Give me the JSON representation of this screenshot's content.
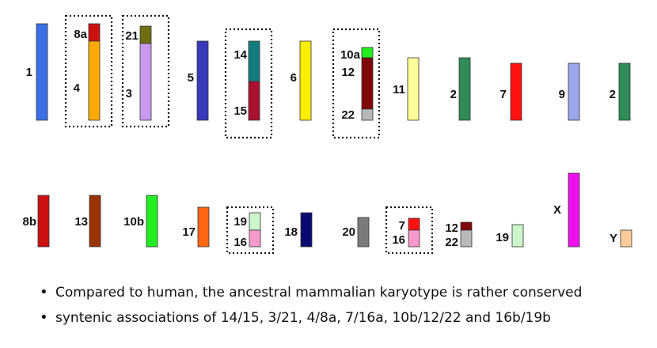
{
  "groups_row1": [
    {
      "label": "1",
      "segments": [
        {
          "color": "#3b6fe6"
        }
      ]
    },
    {
      "grouped": true,
      "labels": [
        "8a",
        "4"
      ],
      "segments": [
        {
          "color": "#cc1111"
        },
        {
          "color": "#ffaa00"
        }
      ]
    },
    {
      "grouped": true,
      "labels": [
        "21",
        "3"
      ],
      "segments": [
        {
          "color": "#6e6e12"
        },
        {
          "color": "#c99af2"
        }
      ]
    },
    {
      "label": "5",
      "segments": [
        {
          "color": "#3838b8"
        }
      ]
    },
    {
      "grouped": true,
      "labels": [
        "14",
        "15"
      ],
      "segments": [
        {
          "color": "#137c7c"
        },
        {
          "color": "#a8102e"
        }
      ]
    },
    {
      "label": "6",
      "segments": [
        {
          "color": "#ffee00"
        }
      ]
    },
    {
      "grouped": true,
      "labels": [
        "10a",
        "12",
        "22"
      ],
      "segments": [
        {
          "color": "#22ee22"
        },
        {
          "color": "#7e0707"
        },
        {
          "color": "#b8b8b8"
        }
      ]
    },
    {
      "label": "11",
      "segments": [
        {
          "color": "#ffff99"
        }
      ]
    },
    {
      "label": "2",
      "segments": [
        {
          "color": "#2f8b57"
        }
      ]
    },
    {
      "label": "7",
      "segments": [
        {
          "color": "#ff1111"
        }
      ]
    },
    {
      "label": "9",
      "segments": [
        {
          "color": "#9aa6ee"
        }
      ]
    },
    {
      "label": "2",
      "segments": [
        {
          "color": "#2f8b57"
        }
      ]
    }
  ],
  "groups_row2": [
    {
      "label": "8b",
      "segments": [
        {
          "color": "#cc1111"
        }
      ]
    },
    {
      "label": "13",
      "segments": [
        {
          "color": "#9a3300"
        }
      ]
    },
    {
      "label": "10b",
      "segments": [
        {
          "color": "#22ee22"
        }
      ]
    },
    {
      "label": "17",
      "segments": [
        {
          "color": "#ff6611"
        }
      ]
    },
    {
      "grouped": true,
      "labels": [
        "19",
        "16"
      ],
      "segments": [
        {
          "color": "#ccf5cc"
        },
        {
          "color": "#f59acb"
        }
      ]
    },
    {
      "label": "18",
      "segments": [
        {
          "color": "#0a0a6e"
        }
      ]
    },
    {
      "label": "20",
      "segments": [
        {
          "color": "#7a7a7a"
        }
      ]
    },
    {
      "grouped": true,
      "labels": [
        "7",
        "16"
      ],
      "segments": [
        {
          "color": "#ff1111"
        },
        {
          "color": "#f59acb"
        }
      ]
    },
    {
      "labels": [
        "12",
        "22"
      ],
      "segments": [
        {
          "color": "#7e0707"
        },
        {
          "color": "#b8b8b8"
        }
      ]
    },
    {
      "label": "19",
      "segments": [
        {
          "color": "#ccf5cc"
        }
      ]
    },
    {
      "label": "X",
      "segments": [
        {
          "color": "#ee11ee"
        }
      ]
    },
    {
      "label": "Y",
      "segments": [
        {
          "color": "#ffcc99"
        }
      ]
    }
  ],
  "bullets": [
    "Compared to human, the ancestral mammalian karyotype is rather conserved",
    "syntenic associations of 14/15, 3/21, 4/8a, 7/16a, 10b/12/22 and 16b/19b"
  ]
}
